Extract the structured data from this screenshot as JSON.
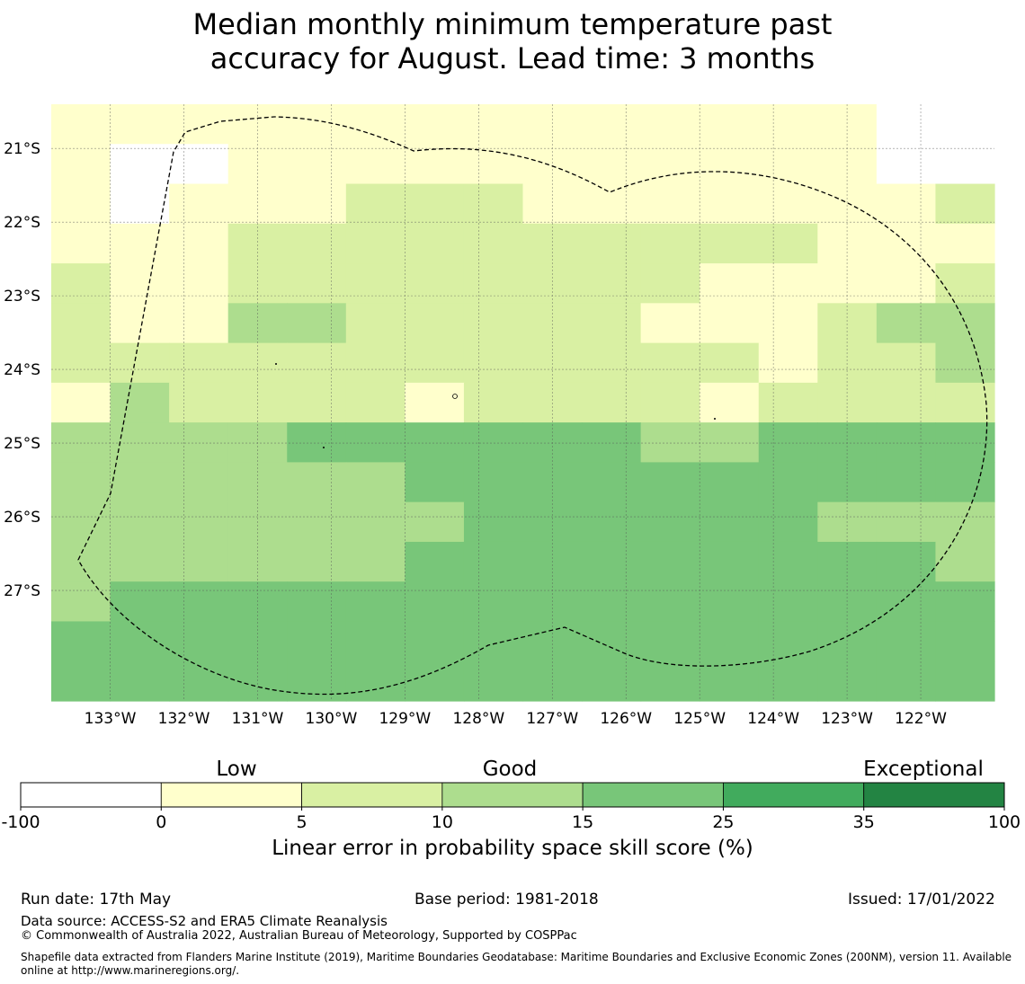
{
  "title": {
    "line1": "Median monthly minimum temperature past",
    "line2": "accuracy for August. Lead time: 3 months"
  },
  "map": {
    "lon_range": [
      -133.8,
      -121.0
    ],
    "lat_range": [
      -28.5,
      -20.4
    ],
    "lon_ticks": [
      -133,
      -132,
      -131,
      -130,
      -129,
      -128,
      -127,
      -126,
      -125,
      -124,
      -123,
      -122
    ],
    "lon_tick_labels": [
      "133°W",
      "132°W",
      "131°W",
      "130°W",
      "129°W",
      "128°W",
      "127°W",
      "126°W",
      "125°W",
      "124°W",
      "123°W",
      "122°W"
    ],
    "lat_ticks": [
      -21,
      -22,
      -23,
      -24,
      -25,
      -26,
      -27
    ],
    "lat_tick_labels": [
      "21°S",
      "22°S",
      "23°S",
      "24°S",
      "25°S",
      "26°S",
      "27°S"
    ],
    "grid": true,
    "cell_columns": 16,
    "cell_rows": 15,
    "category_grid": [
      "1111111111111100",
      "1001111111111100",
      "1011122211111112",
      "1112222222222111",
      "2112222222211112",
      "2113322222111233",
      "2222222222221223",
      "1322221222212222",
      "3333444444334444",
      "3333334444444444",
      "3333333444444333",
      "3333334444444443",
      "3444444444444444",
      "4444444444444444",
      "4444444444444444"
    ],
    "category_grid_note": "",
    "eez_outline": "dashed"
  },
  "chart_data": {
    "type": "heatmap",
    "title": "Median monthly minimum temperature past accuracy for August. Lead time: 3 months",
    "xlabel": "",
    "ylabel": "",
    "colorbar": {
      "label": "Linear error in probability space skill score (%)",
      "boundaries": [
        -100,
        0,
        5,
        10,
        15,
        25,
        35,
        100
      ],
      "boundary_labels": [
        "-100",
        "0",
        "5",
        "10",
        "15",
        "25",
        "35",
        "100"
      ],
      "colors": [
        "#ffffff",
        "#ffffcc",
        "#d9f0a3",
        "#addd8e",
        "#78c679",
        "#41ab5d",
        "#238443"
      ],
      "categories": [
        {
          "label": "Low",
          "position": 0
        },
        {
          "label": "Good",
          "position": 10
        },
        {
          "label": "Exceptional",
          "position": 100
        }
      ]
    }
  },
  "footer": {
    "run_date": "Run date: 17th May",
    "base_period": "Base period: 1981-2018",
    "issued": "Issued: 17/01/2022",
    "data_source": "Data source: ACCESS-S2 and ERA5 Climate Reanalysis",
    "copyright": "© Commonwealth of Australia 2022, Australian Bureau of Meteorology, Supported by COSPPac",
    "shapefile": "Shapefile data extracted from Flanders Marine Institute (2019), Maritime Boundaries Geodatabase: Maritime Boundaries and Exclusive Economic Zones (200NM), version 11. Available online at http://www.marineregions.org/."
  }
}
